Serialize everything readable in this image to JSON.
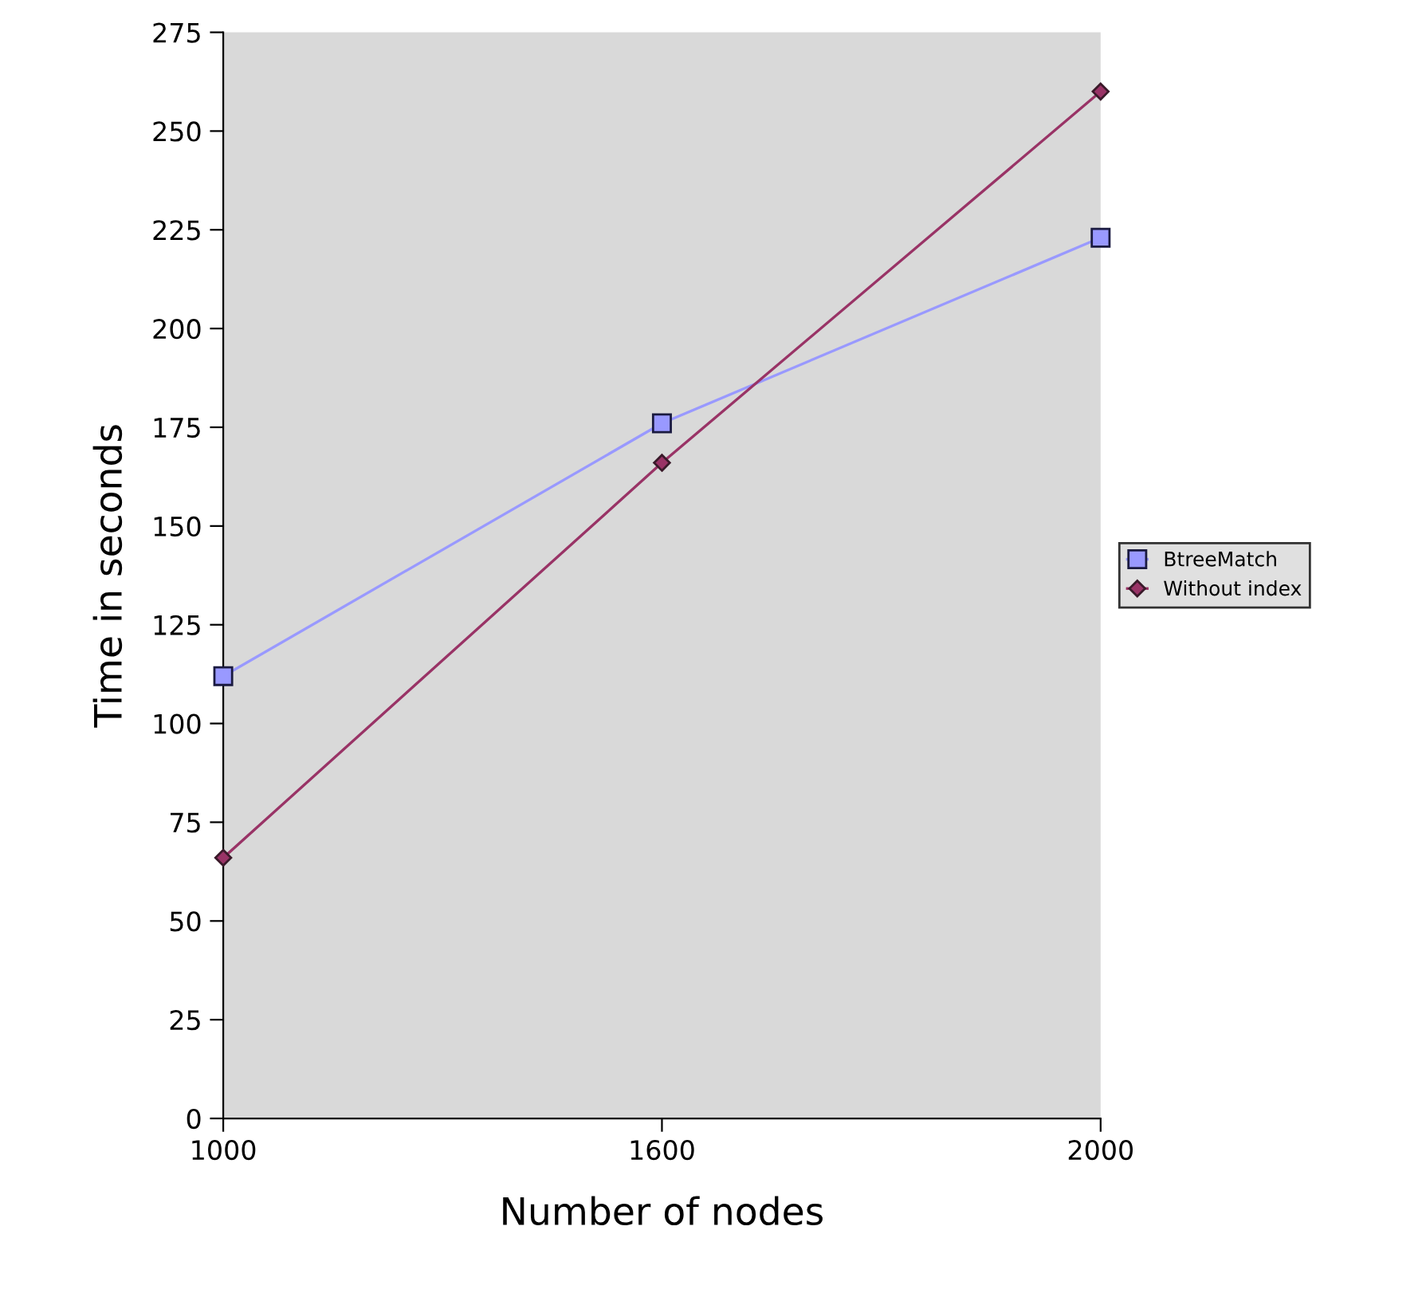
{
  "chart_data": {
    "type": "line",
    "xlabel": "Number of nodes",
    "ylabel": "Time in seconds",
    "categories": [
      "1000",
      "1600",
      "2000"
    ],
    "series": [
      {
        "name": "BtreeMatch",
        "color": "#9999ff",
        "marker": "square",
        "values": [
          112,
          176,
          223
        ]
      },
      {
        "name": "Without index",
        "color": "#993366",
        "marker": "diamond",
        "values": [
          66,
          166,
          260
        ]
      }
    ],
    "ylim": [
      0,
      275
    ],
    "yticks": [
      0,
      25,
      50,
      75,
      100,
      125,
      150,
      175,
      200,
      225,
      250,
      275
    ],
    "grid": false,
    "legend": "right",
    "line_style": "solid"
  }
}
